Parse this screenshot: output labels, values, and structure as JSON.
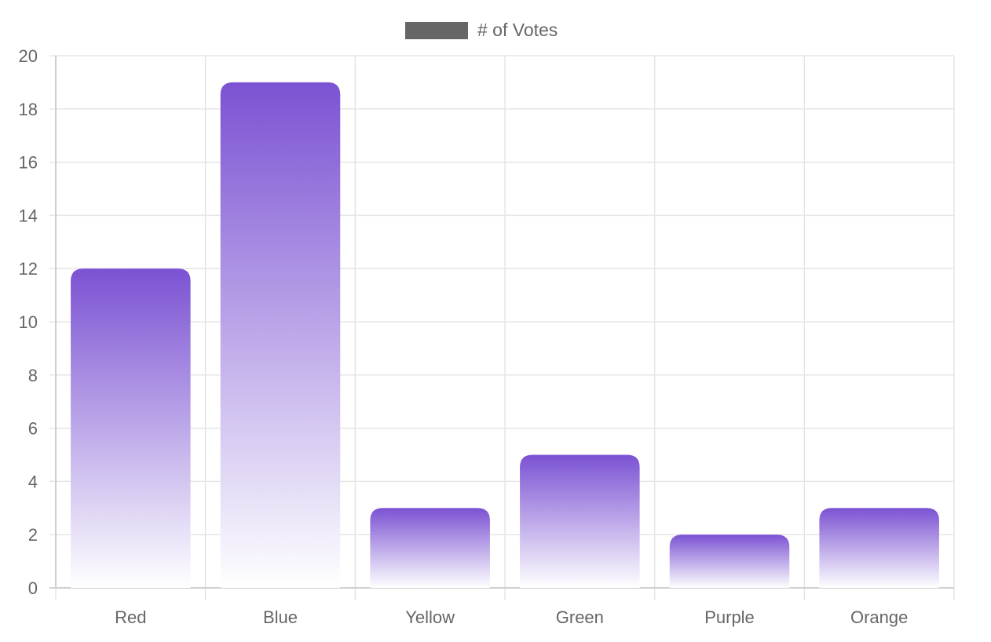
{
  "chart_data": {
    "type": "bar",
    "categories": [
      "Red",
      "Blue",
      "Yellow",
      "Green",
      "Purple",
      "Orange"
    ],
    "series": [
      {
        "name": "# of Votes",
        "values": [
          12,
          19,
          3,
          5,
          2,
          3
        ]
      }
    ],
    "ylim": [
      0,
      20
    ],
    "y_ticks": [
      0,
      2,
      4,
      6,
      8,
      10,
      12,
      14,
      16,
      18,
      20
    ],
    "grid": true,
    "legend_position": "top-center",
    "colors": {
      "bar_top": "#7b52d3",
      "bar_bottom": "#ffffff",
      "legend_swatch": "#666666",
      "grid": "#e5e5e5",
      "text": "#666666"
    }
  }
}
